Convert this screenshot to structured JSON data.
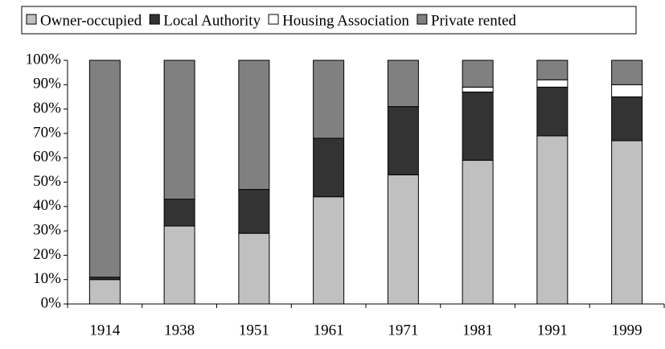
{
  "chart_data": {
    "type": "stacked-bar",
    "categories": [
      "1914",
      "1938",
      "1951",
      "1961",
      "1971",
      "1981",
      "1991",
      "1999"
    ],
    "series": [
      {
        "name": "Owner-occupied",
        "color": "#c0c0c0",
        "values": [
          10,
          32,
          29,
          44,
          53,
          59,
          69,
          67
        ]
      },
      {
        "name": "Local Authority",
        "color": "#333333",
        "values": [
          1,
          11,
          18,
          24,
          28,
          28,
          20,
          18
        ]
      },
      {
        "name": "Housing Association",
        "color": "#ffffff",
        "values": [
          0,
          0,
          0,
          0,
          0,
          2,
          3,
          5
        ]
      },
      {
        "name": "Private rented",
        "color": "#808080",
        "values": [
          89,
          57,
          53,
          32,
          19,
          11,
          8,
          10
        ]
      }
    ],
    "ylim": [
      0,
      100
    ],
    "yticks": [
      {
        "value": 0,
        "label": "0%"
      },
      {
        "value": 10,
        "label": "10%"
      },
      {
        "value": 20,
        "label": "20%"
      },
      {
        "value": 30,
        "label": "30%"
      },
      {
        "value": 40,
        "label": "40%"
      },
      {
        "value": 50,
        "label": "50%"
      },
      {
        "value": 60,
        "label": "60%"
      },
      {
        "value": 70,
        "label": "70%"
      },
      {
        "value": 80,
        "label": "80%"
      },
      {
        "value": 90,
        "label": "90%"
      },
      {
        "value": 100,
        "label": "100%"
      }
    ],
    "legend": "top"
  }
}
